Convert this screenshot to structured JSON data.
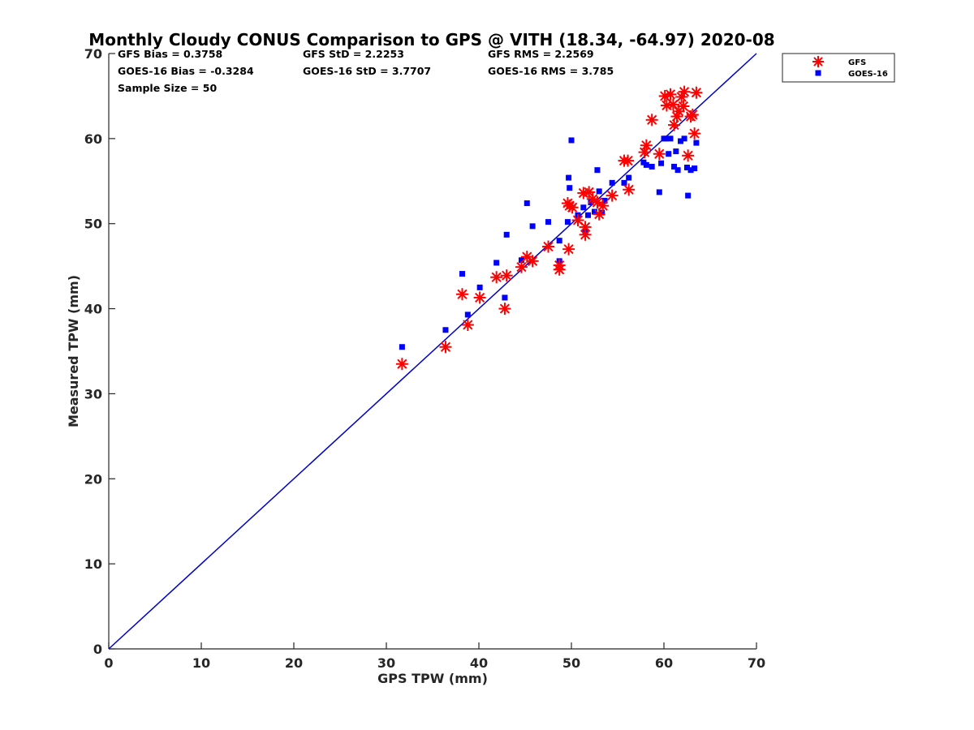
{
  "chart_data": {
    "type": "scatter",
    "title": "Monthly Cloudy CONUS Comparison to GPS @ VITH (18.34, -64.97) 2020-08",
    "xlabel": "GPS TPW (mm)",
    "ylabel": "Measured TPW (mm)",
    "xlim": [
      0,
      70
    ],
    "ylim": [
      0,
      70
    ],
    "xticks": [
      "0",
      "10",
      "20",
      "30",
      "40",
      "50",
      "60",
      "70"
    ],
    "yticks": [
      "0",
      "10",
      "20",
      "30",
      "40",
      "50",
      "60",
      "70"
    ],
    "grid": false,
    "legend_position": "top-right outside",
    "stats": {
      "gfs_bias": "GFS Bias = 0.3758",
      "goes_bias": "GOES-16 Bias = -0.3284",
      "sample_size": "Sample Size = 50",
      "gfs_std": "GFS StD = 2.2253",
      "goes_std": "GOES-16 StD = 3.7707",
      "gfs_rms": "GFS RMS = 2.2569",
      "goes_rms": "GOES-16 RMS = 3.785"
    },
    "reference_line": {
      "x": [
        0,
        70
      ],
      "y": [
        0,
        70
      ],
      "color": "#0000cc"
    },
    "series": [
      {
        "name": "GFS",
        "marker": "asterisk",
        "color": "#ff0000",
        "points": [
          [
            31.7,
            33.5
          ],
          [
            36.4,
            35.5
          ],
          [
            38.2,
            41.7
          ],
          [
            38.8,
            38.1
          ],
          [
            40.1,
            41.3
          ],
          [
            41.9,
            43.7
          ],
          [
            42.8,
            40.0
          ],
          [
            43.0,
            43.9
          ],
          [
            44.6,
            44.9
          ],
          [
            45.2,
            46.1
          ],
          [
            45.8,
            45.6
          ],
          [
            47.5,
            47.3
          ],
          [
            48.7,
            45.1
          ],
          [
            48.7,
            44.6
          ],
          [
            49.7,
            47.0
          ],
          [
            49.6,
            52.4
          ],
          [
            49.8,
            52.1
          ],
          [
            50.1,
            51.9
          ],
          [
            50.7,
            50.4
          ],
          [
            51.3,
            53.6
          ],
          [
            51.5,
            49.6
          ],
          [
            51.5,
            48.7
          ],
          [
            51.9,
            53.7
          ],
          [
            52.3,
            52.9
          ],
          [
            52.8,
            52.5
          ],
          [
            53.0,
            51.1
          ],
          [
            53.4,
            52.1
          ],
          [
            54.4,
            53.3
          ],
          [
            55.7,
            57.4
          ],
          [
            56.1,
            57.4
          ],
          [
            56.2,
            54.0
          ],
          [
            57.9,
            58.4
          ],
          [
            58.1,
            59.2
          ],
          [
            58.7,
            62.2
          ],
          [
            59.5,
            58.2
          ],
          [
            60.1,
            65.0
          ],
          [
            60.3,
            63.9
          ],
          [
            60.7,
            65.2
          ],
          [
            61.1,
            61.6
          ],
          [
            61.4,
            62.6
          ],
          [
            61.6,
            63.2
          ],
          [
            61.9,
            64.9
          ],
          [
            62.1,
            63.8
          ],
          [
            62.2,
            65.5
          ],
          [
            62.6,
            58.0
          ],
          [
            62.9,
            62.6
          ],
          [
            63.1,
            62.8
          ],
          [
            63.3,
            60.6
          ],
          [
            63.5,
            65.4
          ],
          [
            61.0,
            64.0
          ]
        ]
      },
      {
        "name": "GOES-16",
        "marker": "square",
        "color": "#0000ff",
        "points": [
          [
            31.7,
            35.5
          ],
          [
            36.4,
            37.5
          ],
          [
            38.2,
            44.1
          ],
          [
            38.8,
            39.3
          ],
          [
            40.1,
            42.5
          ],
          [
            41.9,
            45.4
          ],
          [
            42.8,
            41.3
          ],
          [
            43.0,
            48.7
          ],
          [
            44.6,
            45.7
          ],
          [
            45.2,
            52.4
          ],
          [
            45.8,
            49.7
          ],
          [
            47.5,
            50.2
          ],
          [
            48.7,
            48.0
          ],
          [
            48.7,
            45.6
          ],
          [
            49.7,
            55.4
          ],
          [
            49.6,
            50.2
          ],
          [
            49.8,
            54.2
          ],
          [
            50.0,
            59.8
          ],
          [
            50.7,
            51.0
          ],
          [
            51.3,
            51.9
          ],
          [
            51.5,
            49.1
          ],
          [
            51.8,
            51.0
          ],
          [
            52.1,
            52.5
          ],
          [
            52.5,
            51.4
          ],
          [
            52.8,
            56.3
          ],
          [
            53.0,
            53.8
          ],
          [
            53.3,
            51.3
          ],
          [
            53.6,
            52.7
          ],
          [
            54.4,
            54.8
          ],
          [
            55.7,
            54.8
          ],
          [
            56.2,
            55.4
          ],
          [
            57.8,
            57.2
          ],
          [
            58.1,
            56.9
          ],
          [
            58.7,
            56.7
          ],
          [
            59.5,
            53.7
          ],
          [
            60.0,
            60.0
          ],
          [
            60.5,
            58.2
          ],
          [
            60.7,
            60.0
          ],
          [
            61.1,
            56.7
          ],
          [
            61.3,
            58.5
          ],
          [
            61.5,
            56.3
          ],
          [
            61.8,
            59.7
          ],
          [
            62.2,
            60.0
          ],
          [
            62.5,
            56.6
          ],
          [
            62.6,
            53.3
          ],
          [
            62.9,
            56.3
          ],
          [
            63.3,
            56.5
          ],
          [
            63.5,
            59.5
          ],
          [
            60.2,
            60.0
          ],
          [
            59.7,
            57.1
          ]
        ]
      }
    ]
  }
}
